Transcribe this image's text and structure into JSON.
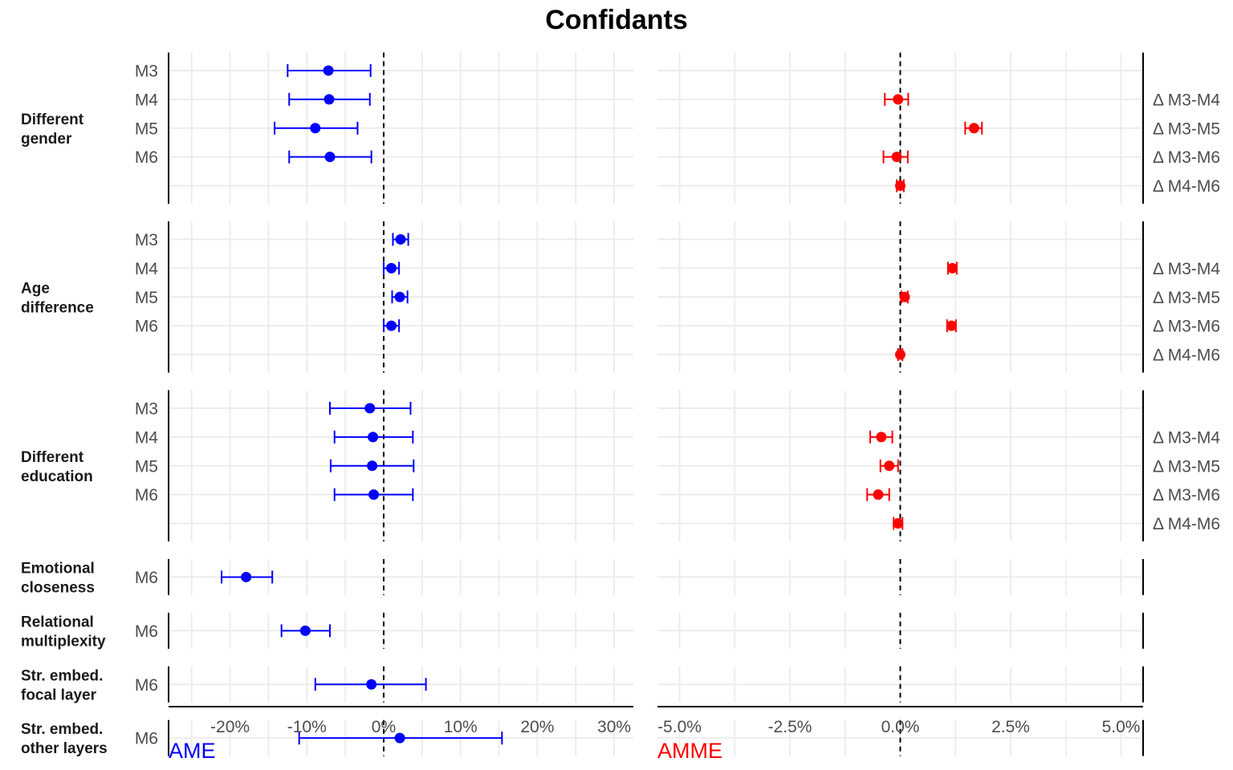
{
  "title": "Confidants",
  "colors": {
    "left": "#0000ff",
    "right": "#ff0000",
    "grid": "#ebebeb",
    "axis": "#000000",
    "text": "#4d4d4d"
  },
  "chart_data": [
    {
      "type": "scatter",
      "subtype": "forest-errorbar",
      "xlabel": "AME",
      "xlim": [
        -28,
        32.5
      ],
      "xticks": [
        -20,
        -10,
        0,
        10,
        20,
        30
      ],
      "xtick_labels": [
        "-20%",
        "-10%",
        "0%",
        "10%",
        "20%",
        "30%"
      ],
      "reference_line": 0,
      "groups": [
        {
          "label": [
            "Different",
            "gender"
          ],
          "rows": [
            "M3",
            "M4",
            "M5",
            "M6",
            ""
          ],
          "points": [
            {
              "row": "M3",
              "est": -7.2,
              "lo": -12.5,
              "hi": -1.7
            },
            {
              "row": "M4",
              "est": -7.1,
              "lo": -12.3,
              "hi": -1.8
            },
            {
              "row": "M5",
              "est": -8.9,
              "lo": -14.2,
              "hi": -3.4
            },
            {
              "row": "M6",
              "est": -7.0,
              "lo": -12.3,
              "hi": -1.6
            }
          ]
        },
        {
          "label": [
            "Age",
            "difference"
          ],
          "rows": [
            "M3",
            "M4",
            "M5",
            "M6",
            ""
          ],
          "points": [
            {
              "row": "M3",
              "est": 2.2,
              "lo": 1.2,
              "hi": 3.2
            },
            {
              "row": "M4",
              "est": 1.0,
              "lo": 0.0,
              "hi": 2.0
            },
            {
              "row": "M5",
              "est": 2.1,
              "lo": 1.1,
              "hi": 3.1
            },
            {
              "row": "M6",
              "est": 1.0,
              "lo": 0.0,
              "hi": 2.0
            }
          ]
        },
        {
          "label": [
            "Different",
            "education"
          ],
          "rows": [
            "M3",
            "M4",
            "M5",
            "M6",
            ""
          ],
          "points": [
            {
              "row": "M3",
              "est": -1.8,
              "lo": -7.0,
              "hi": 3.5
            },
            {
              "row": "M4",
              "est": -1.4,
              "lo": -6.4,
              "hi": 3.8
            },
            {
              "row": "M5",
              "est": -1.5,
              "lo": -6.9,
              "hi": 3.9
            },
            {
              "row": "M6",
              "est": -1.3,
              "lo": -6.4,
              "hi": 3.8
            }
          ]
        },
        {
          "label": [
            "Emotional",
            "closeness"
          ],
          "rows": [
            "M6"
          ],
          "points": [
            {
              "row": "M6",
              "est": -17.9,
              "lo": -21.1,
              "hi": -14.5
            }
          ]
        },
        {
          "label": [
            "Relational",
            "multiplexity"
          ],
          "rows": [
            "M6"
          ],
          "points": [
            {
              "row": "M6",
              "est": -10.2,
              "lo": -13.3,
              "hi": -7.0
            }
          ]
        },
        {
          "label": [
            "Str. embed.",
            "focal layer"
          ],
          "rows": [
            "M6"
          ],
          "points": [
            {
              "row": "M6",
              "est": -1.6,
              "lo": -8.9,
              "hi": 5.5
            }
          ]
        },
        {
          "label": [
            "Str. embed.",
            "other layers"
          ],
          "rows": [
            "M6"
          ],
          "points": [
            {
              "row": "M6",
              "est": 2.1,
              "lo": -11.0,
              "hi": 15.4
            }
          ]
        }
      ]
    },
    {
      "type": "scatter",
      "subtype": "forest-errorbar",
      "xlabel": "AMME",
      "xlim": [
        -5.5,
        5.5
      ],
      "xticks": [
        -5,
        -2.5,
        0,
        2.5,
        5
      ],
      "xtick_labels": [
        "-5.0%",
        "-2.5%",
        "0.0%",
        "2.5%",
        "5.0%"
      ],
      "reference_line": 0,
      "groups": [
        {
          "rows": [
            "",
            "Δ M3-M4",
            "Δ M3-M5",
            "Δ M3-M6",
            "Δ M4-M6"
          ],
          "points": [
            {
              "row": "Δ M3-M4",
              "est": -0.05,
              "lo": -0.35,
              "hi": 0.18
            },
            {
              "row": "Δ M3-M5",
              "est": 1.67,
              "lo": 1.47,
              "hi": 1.85
            },
            {
              "row": "Δ M3-M6",
              "est": -0.08,
              "lo": -0.38,
              "hi": 0.17
            },
            {
              "row": "Δ M4-M6",
              "est": 0.0,
              "lo": -0.08,
              "hi": 0.08
            }
          ]
        },
        {
          "rows": [
            "",
            "Δ M3-M4",
            "Δ M3-M5",
            "Δ M3-M6",
            "Δ M4-M6"
          ],
          "points": [
            {
              "row": "Δ M3-M4",
              "est": 1.18,
              "lo": 1.08,
              "hi": 1.28
            },
            {
              "row": "Δ M3-M5",
              "est": 0.1,
              "lo": 0.03,
              "hi": 0.17
            },
            {
              "row": "Δ M3-M6",
              "est": 1.16,
              "lo": 1.06,
              "hi": 1.26
            },
            {
              "row": "Δ M4-M6",
              "est": 0.0,
              "lo": -0.05,
              "hi": 0.05
            }
          ]
        },
        {
          "rows": [
            "",
            "Δ M3-M4",
            "Δ M3-M5",
            "Δ M3-M6",
            "Δ M4-M6"
          ],
          "points": [
            {
              "row": "Δ M3-M4",
              "est": -0.43,
              "lo": -0.68,
              "hi": -0.18
            },
            {
              "row": "Δ M3-M5",
              "est": -0.25,
              "lo": -0.45,
              "hi": -0.05
            },
            {
              "row": "Δ M3-M6",
              "est": -0.5,
              "lo": -0.75,
              "hi": -0.25
            },
            {
              "row": "Δ M4-M6",
              "est": -0.05,
              "lo": -0.15,
              "hi": 0.05
            }
          ]
        },
        {
          "rows": [
            ""
          ],
          "points": []
        },
        {
          "rows": [
            ""
          ],
          "points": []
        },
        {
          "rows": [
            ""
          ],
          "points": []
        },
        {
          "rows": [
            ""
          ],
          "points": []
        }
      ]
    }
  ]
}
